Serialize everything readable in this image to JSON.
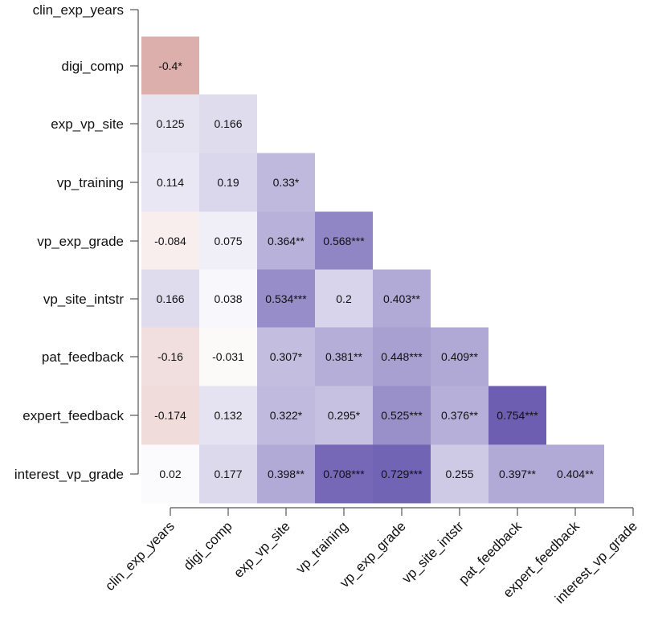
{
  "chart_data": {
    "type": "heatmap",
    "title": "",
    "variables": [
      "clin_exp_years",
      "digi_comp",
      "exp_vp_site",
      "vp_training",
      "vp_exp_grade",
      "vp_site_intstr",
      "pat_feedback",
      "expert_feedback",
      "interest_vp_grade"
    ],
    "matrix_lower": [
      [],
      [
        "-0.4*"
      ],
      [
        "0.125",
        "0.166"
      ],
      [
        "0.114",
        "0.19",
        "0.33*"
      ],
      [
        "-0.084",
        "0.075",
        "0.364**",
        "0.568***"
      ],
      [
        "0.166",
        "0.038",
        "0.534***",
        "0.2",
        "0.403**"
      ],
      [
        "-0.16",
        "-0.031",
        "0.307*",
        "0.381**",
        "0.448***",
        "0.409**"
      ],
      [
        "-0.174",
        "0.132",
        "0.322*",
        "0.295*",
        "0.525***",
        "0.376**",
        "0.754***"
      ],
      [
        "0.02",
        "0.177",
        "0.398**",
        "0.708***",
        "0.729***",
        "0.255",
        "0.397**",
        "0.404**"
      ]
    ],
    "color_scale": {
      "negative": "#b5524e",
      "zero": "#ffffff",
      "positive": "#5a4aa8"
    },
    "layout": "lower-triangle"
  }
}
